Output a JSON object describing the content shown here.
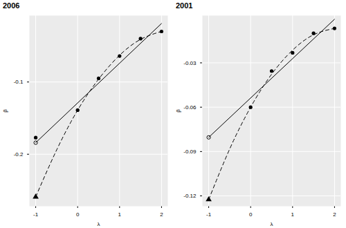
{
  "chart_data": [
    {
      "type": "line",
      "title": "2006",
      "x_label": "λ",
      "y_label": "β",
      "xlim": [
        -1.15,
        2.15
      ],
      "xticks": [
        -1,
        0,
        1,
        2
      ],
      "ylim": [
        -0.272,
        -0.008
      ],
      "yticks": [
        -0.2,
        -0.1
      ],
      "grid": true,
      "series": [
        {
          "type": "scatter",
          "marker": "circle",
          "color": "#000000",
          "x": [
            -1,
            0,
            0.5,
            1,
            1.5,
            2
          ],
          "values": [
            -0.177,
            -0.139,
            -0.095,
            -0.064,
            -0.04,
            -0.03
          ]
        },
        {
          "type": "scatter",
          "marker": "circle-open",
          "color": "#000000",
          "x": [
            -1
          ],
          "values": [
            -0.184
          ]
        },
        {
          "type": "scatter",
          "marker": "triangle",
          "color": "#000000",
          "x": [
            -1
          ],
          "values": [
            -0.259
          ]
        },
        {
          "type": "line",
          "line_style": "solid",
          "color": "#000000",
          "x": [
            -1,
            2
          ],
          "values": [
            -0.184,
            -0.019
          ]
        },
        {
          "type": "line",
          "line_style": "dashed",
          "color": "#000000",
          "x": [
            -1,
            -0.5,
            0,
            0.5,
            1,
            1.5,
            2
          ],
          "values": [
            -0.259,
            -0.194,
            -0.139,
            -0.096,
            -0.063,
            -0.041,
            -0.03
          ]
        }
      ]
    },
    {
      "type": "line",
      "title": "2001",
      "x_label": "λ",
      "y_label": "β",
      "xlim": [
        -1.15,
        2.15
      ],
      "xticks": [
        -1,
        0,
        1,
        2
      ],
      "ylim": [
        -0.127,
        0.002
      ],
      "yticks": [
        -0.12,
        -0.09,
        -0.06,
        -0.03
      ],
      "grid": true,
      "series": [
        {
          "type": "scatter",
          "marker": "circle",
          "color": "#000000",
          "x": [
            0,
            0.5,
            1,
            1.5,
            2
          ],
          "values": [
            -0.06,
            -0.0355,
            -0.0232,
            -0.01,
            -0.0067
          ]
        },
        {
          "type": "scatter",
          "marker": "circle-open",
          "color": "#000000",
          "x": [
            -1
          ],
          "values": [
            -0.0804
          ]
        },
        {
          "type": "scatter",
          "marker": "triangle",
          "color": "#000000",
          "x": [
            -1
          ],
          "values": [
            -0.1225
          ]
        },
        {
          "type": "line",
          "line_style": "solid",
          "color": "#000000",
          "x": [
            -1,
            2
          ],
          "values": [
            -0.0804,
            -0.0005
          ]
        },
        {
          "type": "line",
          "line_style": "dashed",
          "color": "#000000",
          "x": [
            -1,
            -0.5,
            0,
            0.5,
            1,
            1.5,
            2
          ],
          "values": [
            -0.1225,
            -0.0883,
            -0.06,
            -0.0377,
            -0.0214,
            -0.011,
            -0.0067
          ]
        }
      ]
    }
  ]
}
